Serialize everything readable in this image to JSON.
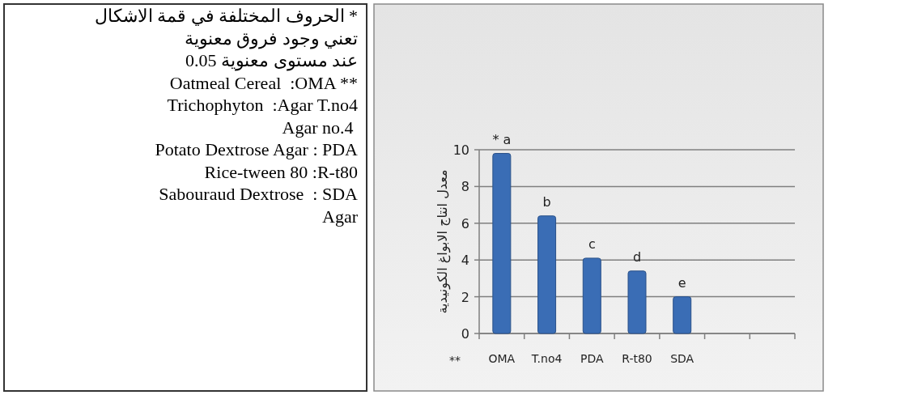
{
  "chart_data": {
    "type": "bar",
    "categories": [
      "OMA",
      "T.no4",
      "PDA",
      "R-t80",
      "SDA",
      null,
      null
    ],
    "values": [
      9.8,
      6.4,
      4.1,
      3.4,
      2.0,
      null,
      null
    ],
    "color": "#3a6db5",
    "ylabel": "معدل انتاج الابواغ الكونيدية",
    "xlabel": "**",
    "ylim": [
      0,
      10
    ],
    "yticks": [
      0,
      2,
      4,
      6,
      8,
      10
    ],
    "grid": "y",
    "annotations": [
      "* الحروف المختلفة في قمة الاشكال",
      "تعني وجود فروق معنوية",
      "عند مستوى معنوية 0.05",
      "Oatmeal Cereal  :OMA **",
      "Trichophyton  :Agar T.no4",
      "Agar no.4 ",
      "Potato Dextrose Agar : PDA",
      "Rice-tween 80 :R-t80",
      "Sabouraud Dextrose  : SDA",
      "Agar",
      {
        "text": "* a",
        "x": "OMA",
        "y": 9.8
      },
      {
        "text": "b",
        "x": "T.no4",
        "y": 6.4
      },
      {
        "text": "c",
        "x": "PDA",
        "y": 4.1
      },
      {
        "text": "d",
        "x": "R-t80",
        "y": 3.4
      },
      {
        "text": "e",
        "x": "SDA",
        "y": 2.0
      }
    ]
  }
}
